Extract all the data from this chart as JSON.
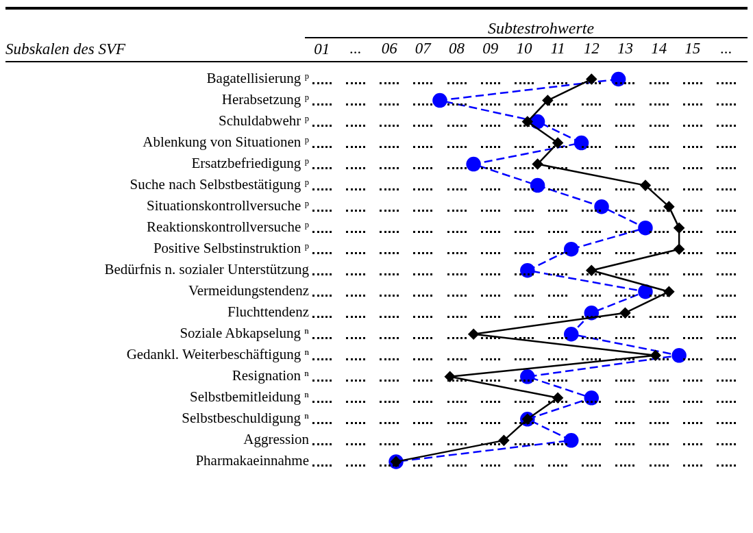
{
  "chart_data": {
    "type": "line",
    "orientation": "horizontal",
    "xlabel": "Subtestrohwerte",
    "categories": [
      "Bagatellisierung ᵖ",
      "Herabsetzung ᵖ",
      "Schuldabwehr ᵖ",
      "Ablenkung von Situationen ᵖ",
      "Ersatzbefriedigung ᵖ",
      "Suche nach Selbstbestätigung ᵖ",
      "Situationskontrollversuche ᵖ",
      "Reaktionskontrollversuche ᵖ",
      "Positive Selbstinstruktion ᵖ",
      "Bedürfnis n. sozialer Unterstützung",
      "Vermeidungstendenz",
      "Fluchttendenz",
      "Soziale Abkapselung ⁿ",
      "Gedankl. Weiterbeschäftigung ⁿ",
      "Resignation ⁿ",
      "Selbstbemitleidung ⁿ",
      "Selbstbeschuldigung ⁿ",
      "Aggression",
      "Pharmakaeinnahme"
    ],
    "annotations": [
      "Subskalen des SVF",
      "01"
    ],
    "xlim": [
      5,
      16
    ],
    "xticks": [
      {
        "value": 5,
        "label": "..."
      },
      {
        "value": 6,
        "label": "06"
      },
      {
        "value": 7,
        "label": "07"
      },
      {
        "value": 8,
        "label": "08"
      },
      {
        "value": 9,
        "label": "09"
      },
      10,
      11,
      12,
      13,
      14,
      15,
      {
        "value": 16,
        "label": "..."
      }
    ],
    "series": [
      {
        "color": "#000000",
        "marker": "diamond",
        "line_style": "solid",
        "values": [
          12.0,
          10.7,
          10.1,
          11.0,
          10.4,
          13.6,
          14.3,
          14.6,
          14.6,
          12.0,
          14.3,
          13.0,
          8.5,
          13.9,
          7.8,
          11.0,
          10.1,
          9.4,
          6.2
        ]
      },
      {
        "color": "#0000ff",
        "marker": "circle",
        "line_style": "dashed",
        "values": [
          12.8,
          7.5,
          10.4,
          11.7,
          8.5,
          10.4,
          12.3,
          13.6,
          11.4,
          10.1,
          13.6,
          12.0,
          11.4,
          14.6,
          10.1,
          12.0,
          10.1,
          11.4,
          6.2
        ]
      }
    ],
    "legend": false
  }
}
